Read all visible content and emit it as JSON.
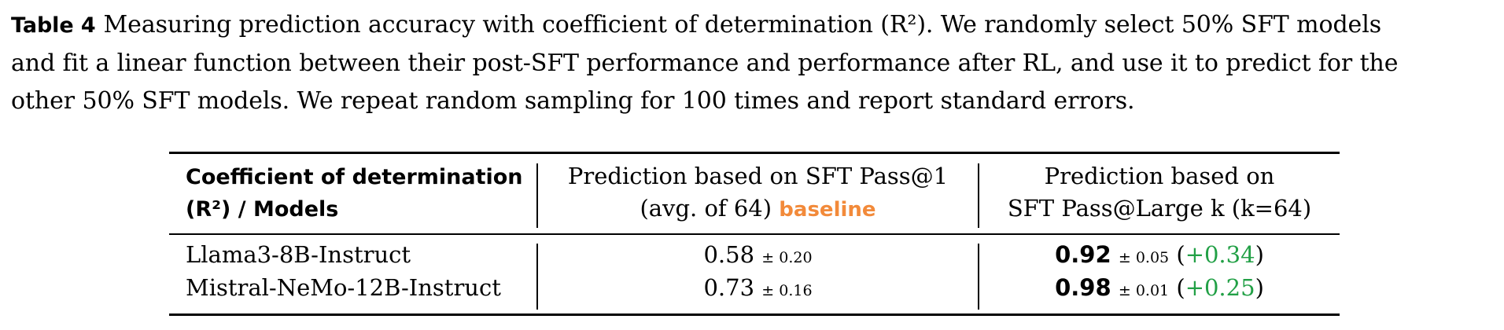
{
  "caption": {
    "label": "Table 4",
    "lines": [
      "Measuring prediction accuracy with coefficient of determination (R²). We randomly select 50% SFT models",
      "and fit a linear function between their post-SFT performance and performance after RL, and use it to predict for the",
      "other 50% SFT models. We repeat random sampling for 100 times and report standard errors."
    ]
  },
  "table": {
    "header": {
      "col1_line1": "Coefficient of determination",
      "col1_line2": "(R²) / Models",
      "col2_line1": "Prediction based on SFT Pass@1",
      "col2_line2": "(avg. of 64)",
      "col2_tag": "baseline",
      "col3_line1": "Prediction based on",
      "col3_line2": "SFT Pass@Large k (k=64)"
    },
    "rows": [
      {
        "model": "Llama3-8B-Instruct",
        "baseline_value": "0.58",
        "baseline_err": "± 0.20",
        "pred_value": "0.92",
        "pred_err": "± 0.05",
        "gain": "+0.34"
      },
      {
        "model": "Mistral-NeMo-12B-Instruct",
        "baseline_value": "0.73",
        "baseline_err": "± 0.16",
        "pred_value": "0.98",
        "pred_err": "± 0.01",
        "gain": "+0.25"
      }
    ]
  },
  "colors": {
    "baseline_tag": "#f28a3a",
    "gain": "#22a046"
  }
}
